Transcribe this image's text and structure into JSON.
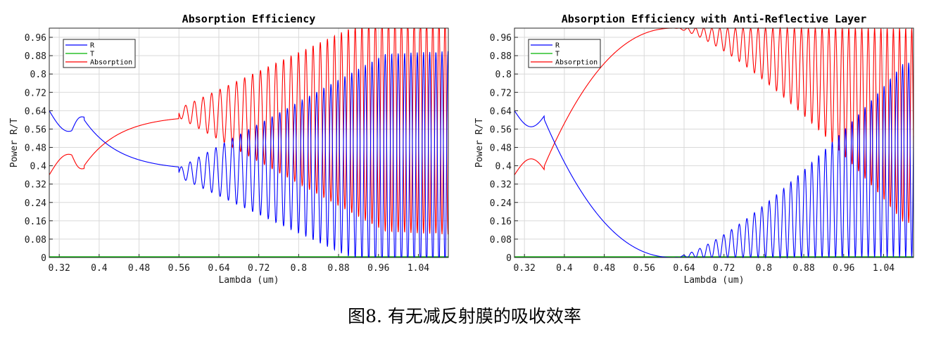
{
  "caption": "图8. 有无减反射膜的吸收效率",
  "colors": {
    "R": "#0000ff",
    "T": "#00b400",
    "Absorption": "#ff0000",
    "grid": "#d9d9d9"
  },
  "chart_data": [
    {
      "type": "line",
      "title": "Absorption Efficiency",
      "xlabel": "Lambda (um)",
      "ylabel": "Power R/T",
      "xlim": [
        0.3,
        1.1
      ],
      "ylim": [
        0,
        1.0
      ],
      "xticks": [
        "0.32",
        "0.4",
        "0.48",
        "0.56",
        "0.64",
        "0.72",
        "0.8",
        "0.88",
        "0.96",
        "1.04"
      ],
      "yticks": [
        "0",
        "0.08",
        "0.16",
        "0.24",
        "0.32",
        "0.4",
        "0.48",
        "0.56",
        "0.64",
        "0.72",
        "0.8",
        "0.88",
        "0.96"
      ],
      "grid": true,
      "legend_position": "top-left",
      "series": [
        {
          "name": "R",
          "color": "#0000ff"
        },
        {
          "name": "T",
          "color": "#00b400"
        },
        {
          "name": "Absorption",
          "color": "#ff0000"
        }
      ]
    },
    {
      "type": "line",
      "title": "Absorption Efficiency with Anti-Reflective Layer",
      "xlabel": "Lambda (um)",
      "ylabel": "Power R/T",
      "xlim": [
        0.3,
        1.1
      ],
      "ylim": [
        0,
        1.0
      ],
      "xticks": [
        "0.32",
        "0.4",
        "0.48",
        "0.56",
        "0.64",
        "0.72",
        "0.8",
        "0.88",
        "0.96",
        "1.04"
      ],
      "yticks": [
        "0",
        "0.08",
        "0.16",
        "0.24",
        "0.32",
        "0.4",
        "0.48",
        "0.56",
        "0.64",
        "0.72",
        "0.8",
        "0.88",
        "0.96"
      ],
      "grid": true,
      "legend_position": "top-left",
      "series": [
        {
          "name": "R",
          "color": "#0000ff"
        },
        {
          "name": "T",
          "color": "#00b400"
        },
        {
          "name": "Absorption",
          "color": "#ff0000"
        }
      ]
    }
  ]
}
